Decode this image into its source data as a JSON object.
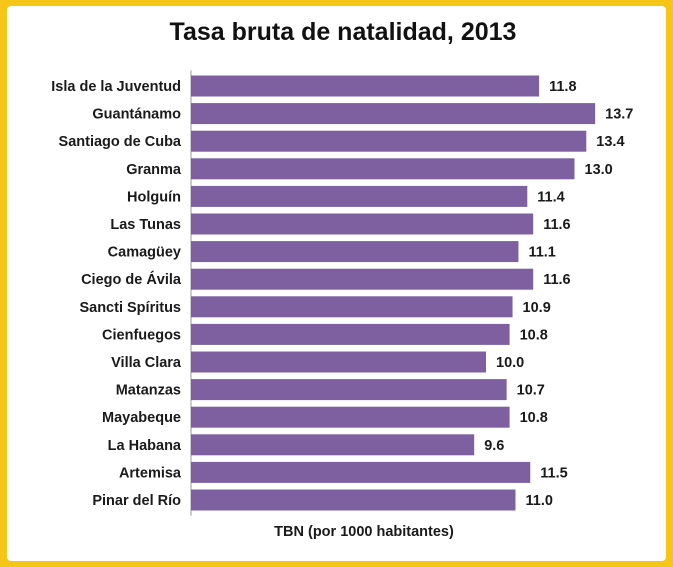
{
  "chart_data": {
    "type": "bar",
    "orientation": "horizontal",
    "title": "Tasa bruta de natalidad,  2013",
    "xlabel": "TBN (por 1000 habitantes)",
    "ylabel": "",
    "xlim": [
      0,
      14
    ],
    "grid": false,
    "bar_color": "#7E60A0",
    "background_color": "#FFFFFF",
    "border_color": "#F5C518",
    "categories": [
      "Isla de la Juventud",
      "Guantánamo",
      "Santiago de Cuba",
      "Granma",
      "Holguín",
      "Las Tunas",
      "Camagüey",
      "Ciego de Ávila",
      "Sancti Spíritus",
      "Cienfuegos",
      "Villa Clara",
      "Matanzas",
      "Mayabeque",
      "La Habana",
      "Artemisa",
      "Pinar del Río"
    ],
    "values": [
      11.8,
      13.7,
      13.4,
      13.0,
      11.4,
      11.6,
      11.1,
      11.6,
      10.9,
      10.8,
      10.0,
      10.7,
      10.8,
      9.6,
      11.5,
      11.0
    ],
    "value_labels": [
      "11.8",
      "13.7",
      "13.4",
      "13.0",
      "11.4",
      "11.6",
      "11.1",
      "11.6",
      "10.9",
      "10.8",
      "10.0",
      "10.7",
      "10.8",
      "9.6",
      "11.5",
      "11.0"
    ]
  }
}
